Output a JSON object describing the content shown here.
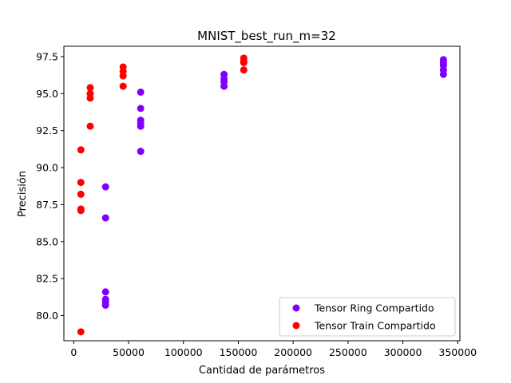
{
  "chart_data": {
    "type": "scatter",
    "title": "MNIST_best_run_m=32",
    "xlabel": "Cantidad de parámetros",
    "ylabel": "Precisión",
    "xlim": [
      -9000,
      352000
    ],
    "ylim": [
      78.3,
      98.2
    ],
    "x_ticks": [
      0,
      50000,
      100000,
      150000,
      200000,
      250000,
      300000,
      350000
    ],
    "x_tick_labels": [
      "0",
      "50000",
      "100000",
      "150000",
      "200000",
      "250000",
      "300000",
      "350000"
    ],
    "y_ticks": [
      80.0,
      82.5,
      85.0,
      87.5,
      90.0,
      92.5,
      95.0,
      97.5
    ],
    "y_tick_labels": [
      "80.0",
      "82.5",
      "85.0",
      "87.5",
      "90.0",
      "92.5",
      "95.0",
      "97.5"
    ],
    "grid": false,
    "legend_position": "lower-right",
    "series": [
      {
        "name": "Tensor Ring Compartido",
        "color": "#8000ff",
        "points": [
          {
            "x": 29000,
            "y": 88.7
          },
          {
            "x": 29000,
            "y": 86.6
          },
          {
            "x": 29000,
            "y": 81.6
          },
          {
            "x": 29000,
            "y": 81.1
          },
          {
            "x": 29000,
            "y": 80.9
          },
          {
            "x": 29000,
            "y": 80.7
          },
          {
            "x": 61000,
            "y": 95.1
          },
          {
            "x": 61000,
            "y": 94.0
          },
          {
            "x": 61000,
            "y": 93.2
          },
          {
            "x": 61000,
            "y": 93.0
          },
          {
            "x": 61000,
            "y": 92.8
          },
          {
            "x": 61000,
            "y": 91.1
          },
          {
            "x": 137000,
            "y": 96.3
          },
          {
            "x": 137000,
            "y": 96.0
          },
          {
            "x": 137000,
            "y": 95.8
          },
          {
            "x": 137000,
            "y": 95.5
          },
          {
            "x": 337000,
            "y": 97.3
          },
          {
            "x": 337000,
            "y": 97.1
          },
          {
            "x": 337000,
            "y": 96.9
          },
          {
            "x": 337000,
            "y": 96.6
          },
          {
            "x": 337000,
            "y": 96.3
          }
        ]
      },
      {
        "name": "Tensor Train Compartido",
        "color": "#ff0000",
        "points": [
          {
            "x": 6500,
            "y": 91.2
          },
          {
            "x": 6500,
            "y": 89.0
          },
          {
            "x": 6500,
            "y": 88.2
          },
          {
            "x": 6500,
            "y": 87.2
          },
          {
            "x": 6500,
            "y": 87.1
          },
          {
            "x": 6500,
            "y": 78.9
          },
          {
            "x": 15000,
            "y": 95.4
          },
          {
            "x": 15000,
            "y": 95.0
          },
          {
            "x": 15000,
            "y": 94.7
          },
          {
            "x": 15000,
            "y": 92.8
          },
          {
            "x": 45000,
            "y": 96.8
          },
          {
            "x": 45000,
            "y": 96.5
          },
          {
            "x": 45000,
            "y": 96.2
          },
          {
            "x": 45000,
            "y": 95.5
          },
          {
            "x": 155000,
            "y": 97.4
          },
          {
            "x": 155000,
            "y": 97.2
          },
          {
            "x": 155000,
            "y": 97.1
          },
          {
            "x": 155000,
            "y": 96.6
          }
        ]
      }
    ]
  }
}
